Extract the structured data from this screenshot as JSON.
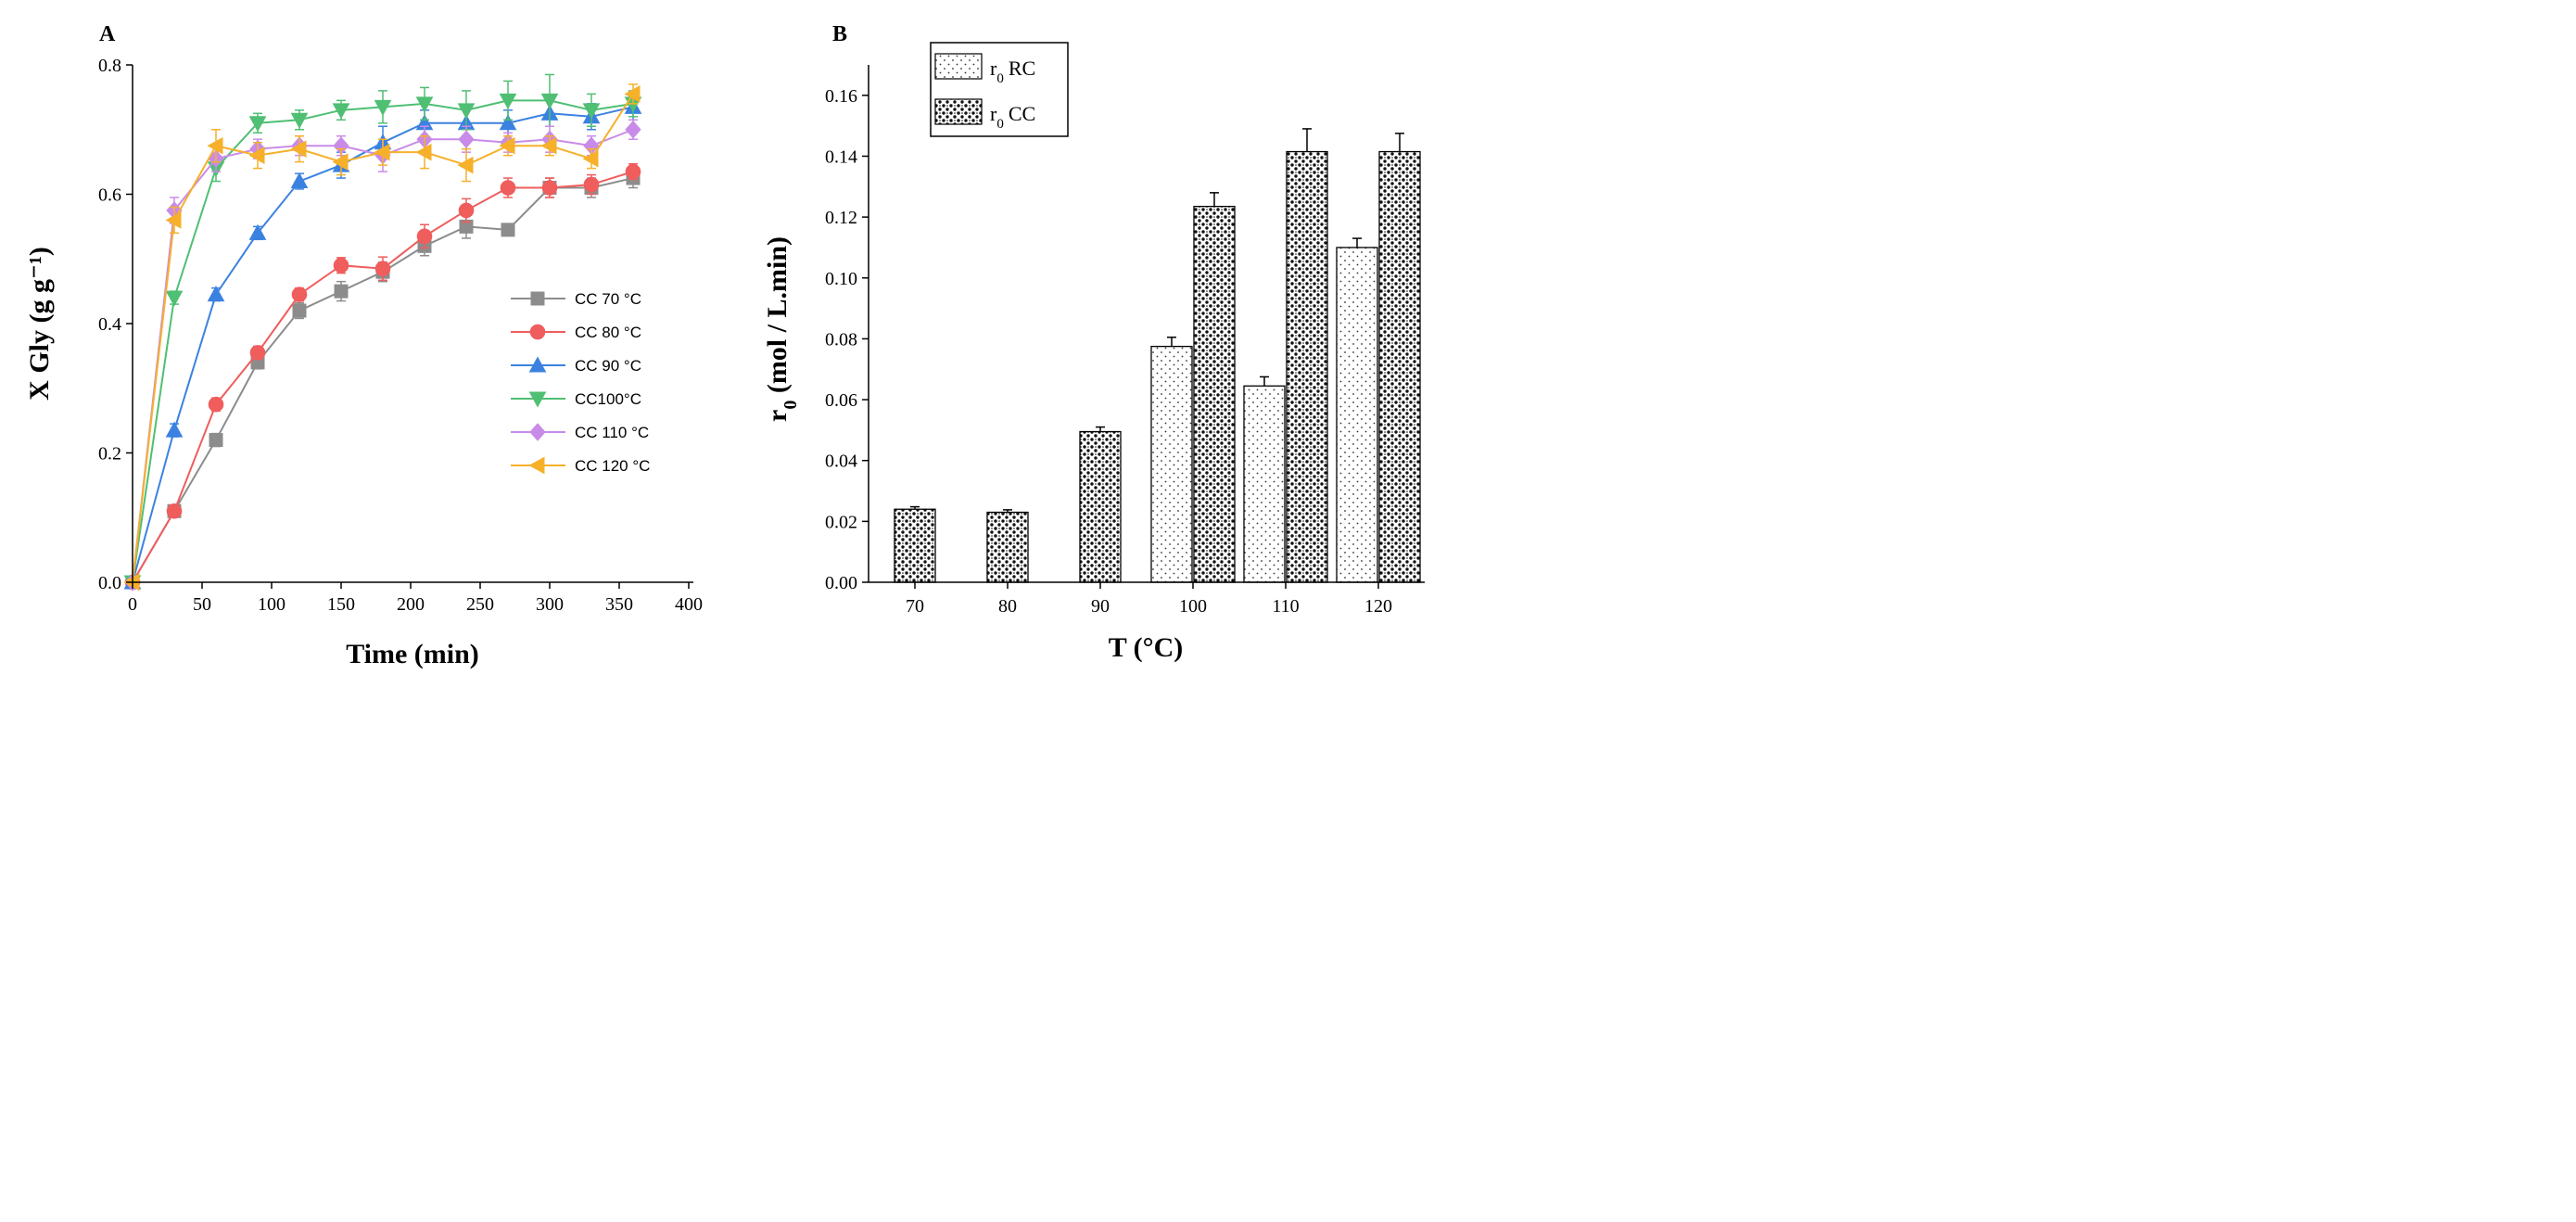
{
  "chart_data": [
    {
      "panel": "A",
      "type": "line",
      "title": "",
      "xlabel": "Time (min)",
      "ylabel": "X Gly (g g⁻¹)",
      "xlim": [
        0,
        400
      ],
      "ylim": [
        0.0,
        0.8
      ],
      "xticks": [
        0,
        50,
        100,
        150,
        200,
        250,
        300,
        350,
        400
      ],
      "yticks": [
        "0.0",
        "0.2",
        "0.4",
        "0.6",
        "0.8"
      ],
      "grid": false,
      "legend_position": "center-right",
      "x": [
        0,
        30,
        60,
        90,
        120,
        150,
        180,
        210,
        240,
        270,
        300,
        330,
        360
      ],
      "series": [
        {
          "name": "CC 70 °C",
          "color": "#8c8c8c",
          "marker": "square",
          "values": [
            0.0,
            0.11,
            0.22,
            0.34,
            0.42,
            0.45,
            0.48,
            0.52,
            0.55,
            0.545,
            0.61,
            0.61,
            0.625
          ],
          "errors": [
            0.005,
            0.008,
            0.01,
            0.01,
            0.012,
            0.015,
            0.015,
            0.015,
            0.018,
            0.008,
            0.015,
            0.015,
            0.015
          ]
        },
        {
          "name": "CC 80 °C",
          "color": "#ef5d5d",
          "marker": "circle",
          "values": [
            0.0,
            0.11,
            0.275,
            0.355,
            0.445,
            0.49,
            0.485,
            0.535,
            0.575,
            0.61,
            0.61,
            0.615,
            0.635
          ],
          "errors": [
            0.005,
            0.008,
            0.01,
            0.01,
            0.01,
            0.012,
            0.018,
            0.018,
            0.018,
            0.015,
            0.015,
            0.015,
            0.012
          ]
        },
        {
          "name": "CC 90 °C",
          "color": "#3b82e0",
          "marker": "triangle-up",
          "values": [
            0.0,
            0.235,
            0.445,
            0.54,
            0.62,
            0.645,
            0.68,
            0.71,
            0.71,
            0.71,
            0.725,
            0.72,
            0.735
          ],
          "errors": [
            0.005,
            0.01,
            0.01,
            0.01,
            0.012,
            0.02,
            0.025,
            0.02,
            0.02,
            0.02,
            0.02,
            0.02,
            0.02
          ]
        },
        {
          "name": "CC100°C",
          "color": "#4fbf73",
          "marker": "triangle-down",
          "values": [
            0.0,
            0.44,
            0.64,
            0.71,
            0.715,
            0.73,
            0.735,
            0.74,
            0.73,
            0.745,
            0.745,
            0.73,
            0.74
          ],
          "errors": [
            0.005,
            0.01,
            0.02,
            0.015,
            0.015,
            0.015,
            0.025,
            0.025,
            0.03,
            0.03,
            0.04,
            0.025,
            0.02
          ]
        },
        {
          "name": "CC 110 °C",
          "color": "#c98be8",
          "marker": "diamond",
          "values": [
            0.0,
            0.575,
            0.655,
            0.67,
            0.675,
            0.675,
            0.66,
            0.685,
            0.685,
            0.68,
            0.685,
            0.675,
            0.7
          ],
          "errors": [
            0.005,
            0.02,
            0.02,
            0.015,
            0.015,
            0.015,
            0.025,
            0.02,
            0.02,
            0.015,
            0.02,
            0.015,
            0.015
          ]
        },
        {
          "name": "CC 120 °C",
          "color": "#f6b02a",
          "marker": "triangle-left",
          "values": [
            0.0,
            0.56,
            0.675,
            0.66,
            0.67,
            0.65,
            0.665,
            0.665,
            0.645,
            0.675,
            0.675,
            0.655,
            0.755
          ],
          "errors": [
            0.005,
            0.02,
            0.025,
            0.02,
            0.02,
            0.02,
            0.02,
            0.025,
            0.025,
            0.015,
            0.015,
            0.015,
            0.015
          ]
        }
      ]
    },
    {
      "panel": "B",
      "type": "bar",
      "title": "",
      "xlabel": "T (°C)",
      "ylabel_main": "r",
      "ylabel_sub": "0",
      "ylabel_rest": " (mol / L.min)",
      "ylim": [
        0.0,
        0.17
      ],
      "yticks": [
        "0.00",
        "0.02",
        "0.04",
        "0.06",
        "0.08",
        "0.10",
        "0.12",
        "0.14",
        "0.16"
      ],
      "categories": [
        "70",
        "80",
        "90",
        "100",
        "110",
        "120"
      ],
      "grid": false,
      "legend_position": "top-left",
      "series": [
        {
          "name_main": "r",
          "name_sub": "0",
          "name_rest": "RC",
          "pattern": "sparse-dots",
          "values": [
            null,
            null,
            null,
            0.0775,
            0.0645,
            0.11
          ],
          "errors": [
            null,
            null,
            null,
            0.003,
            0.003,
            0.003
          ]
        },
        {
          "name_main": "r",
          "name_sub": "0",
          "name_rest": "CC",
          "pattern": "dense-dots",
          "values": [
            0.024,
            0.023,
            0.0495,
            0.1235,
            0.1415,
            0.1415
          ],
          "errors": [
            0.0008,
            0.0008,
            0.0015,
            0.0045,
            0.0075,
            0.006
          ]
        }
      ]
    }
  ],
  "panel_labels": {
    "a": "A",
    "b": "B"
  }
}
